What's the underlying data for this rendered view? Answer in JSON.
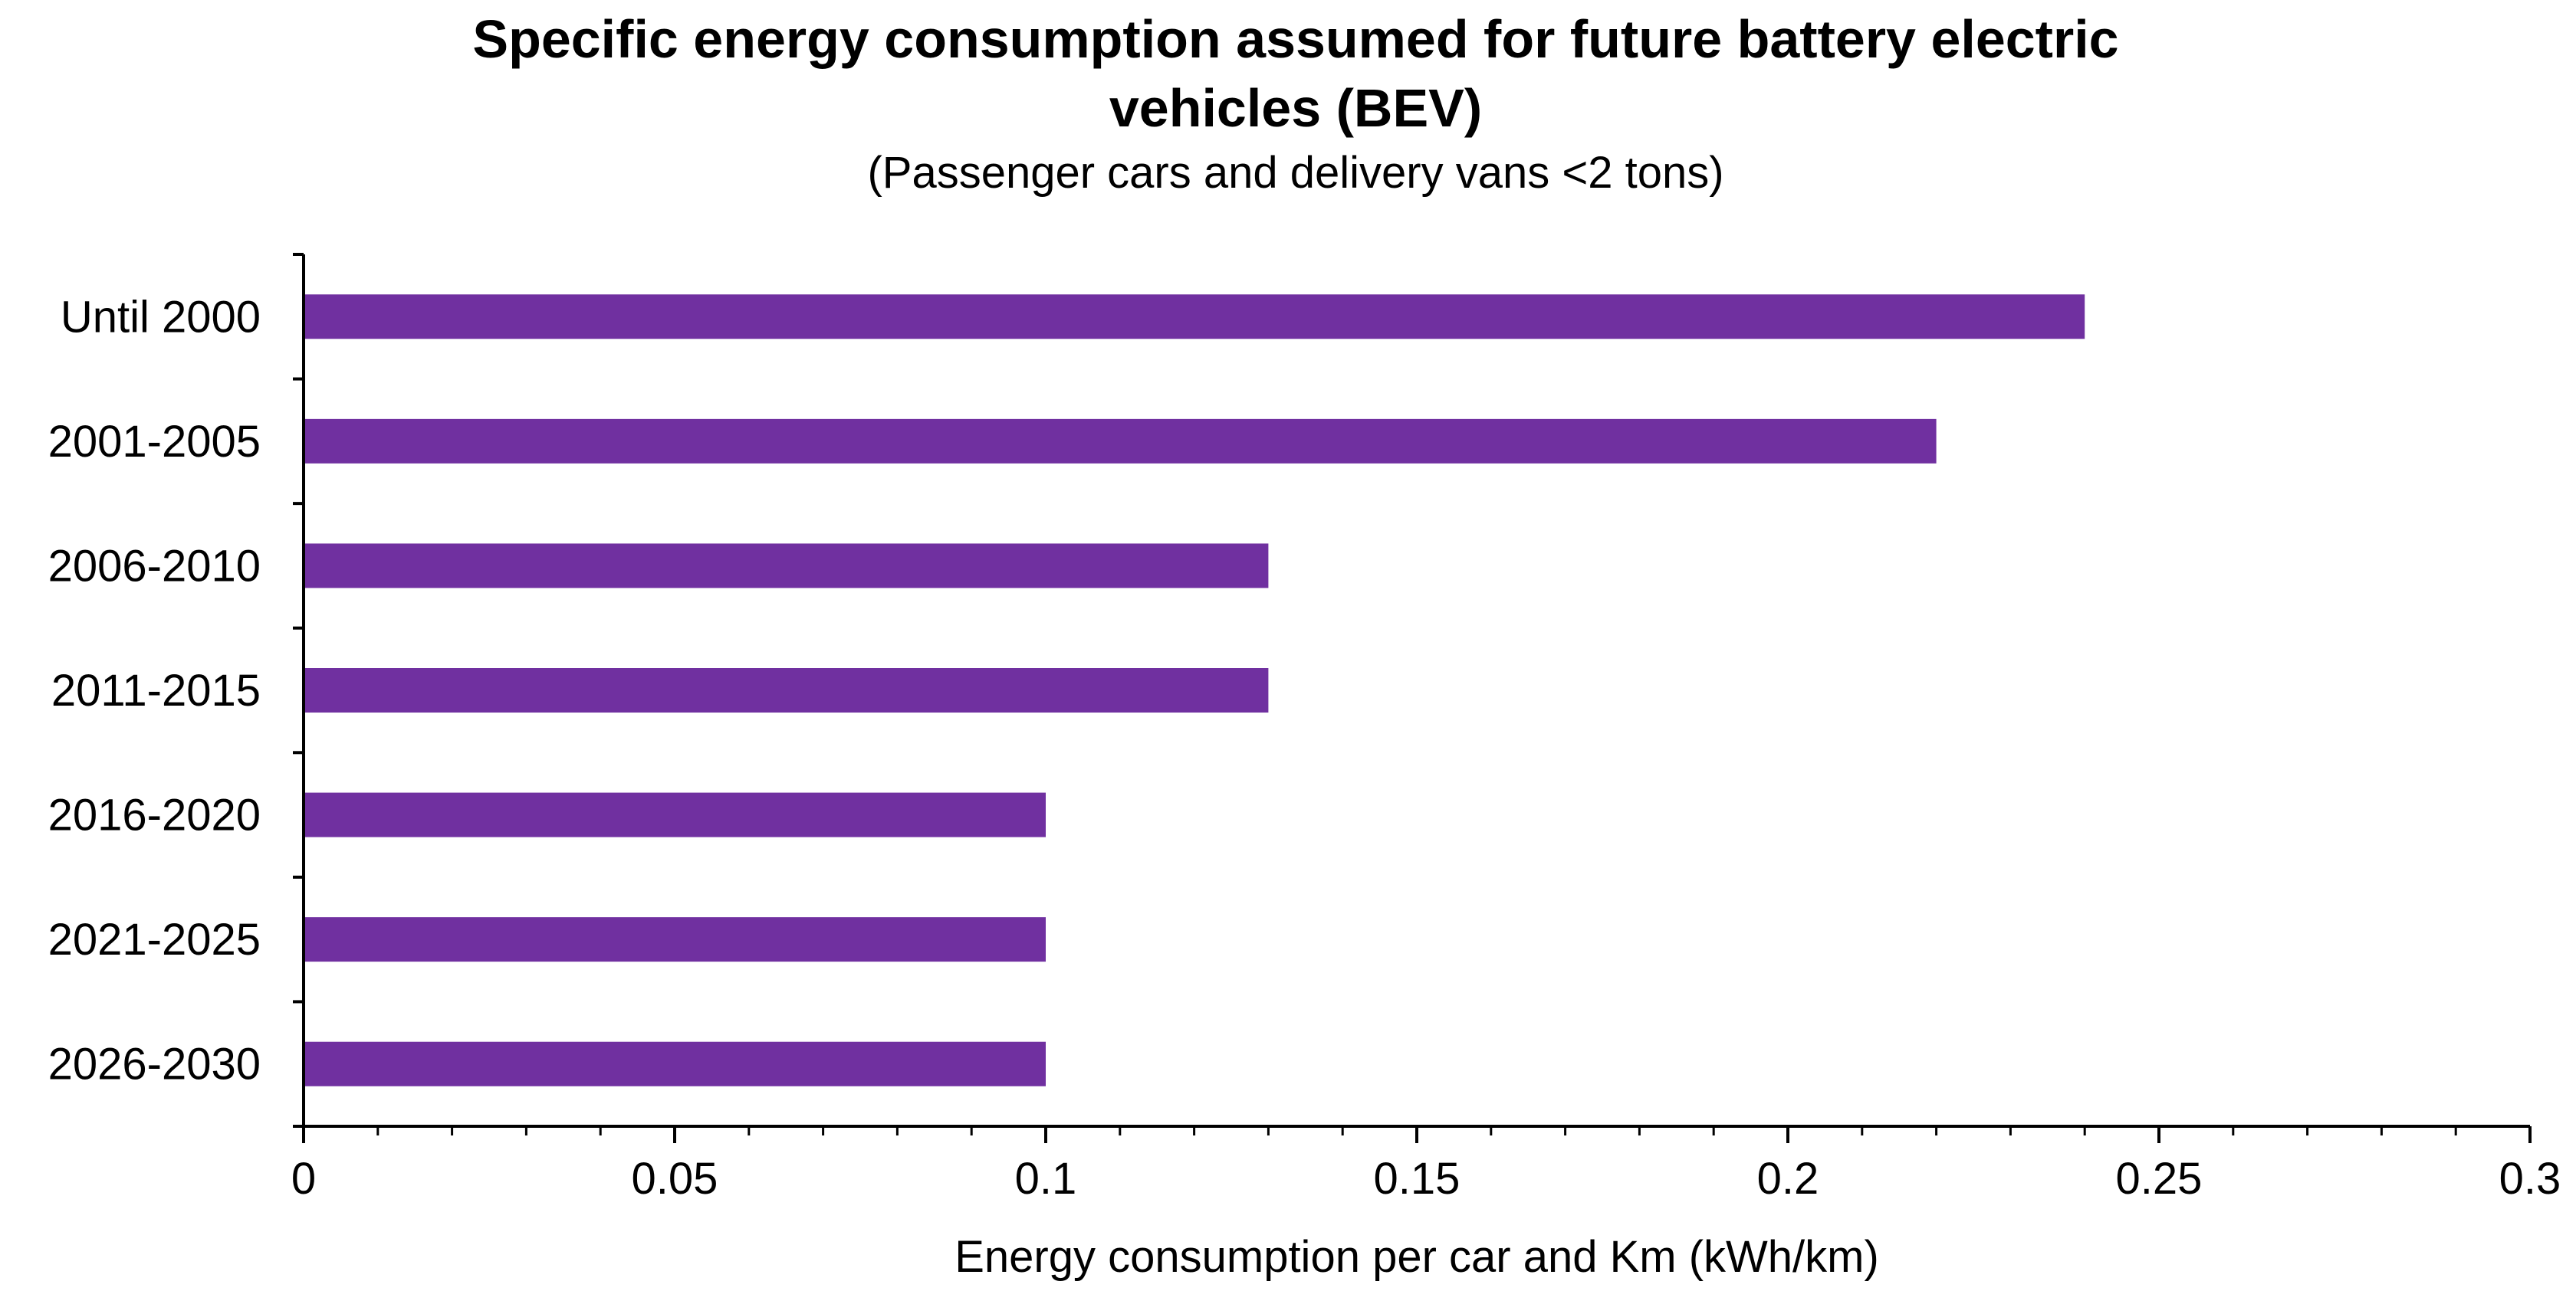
{
  "chart_data": {
    "type": "bar",
    "orientation": "horizontal",
    "title": "Specific energy consumption assumed for future battery electric vehicles (BEV)",
    "title_lines": [
      "Specific energy consumption assumed for future battery electric",
      "vehicles (BEV)"
    ],
    "subtitle": "(Passenger cars and delivery vans <2 tons)",
    "categories": [
      "Until 2000",
      "2001-2005",
      "2006-2010",
      "2011-2015",
      "2016-2020",
      "2021-2025",
      "2026-2030"
    ],
    "values": [
      0.24,
      0.22,
      0.13,
      0.13,
      0.1,
      0.1,
      0.1
    ],
    "xlabel": "Energy consumption per car and Km (kWh/km)",
    "ylabel": "",
    "xlim": [
      0,
      0.3
    ],
    "xticks": [
      0,
      0.05,
      0.1,
      0.15,
      0.2,
      0.25,
      0.3
    ],
    "xtick_labels": [
      "0",
      "0.05",
      "0.1",
      "0.15",
      "0.2",
      "0.25",
      "0.3"
    ],
    "minor_tick_step": 0.01,
    "grid": false,
    "legend": "none",
    "bar_color": "#7030A0"
  }
}
